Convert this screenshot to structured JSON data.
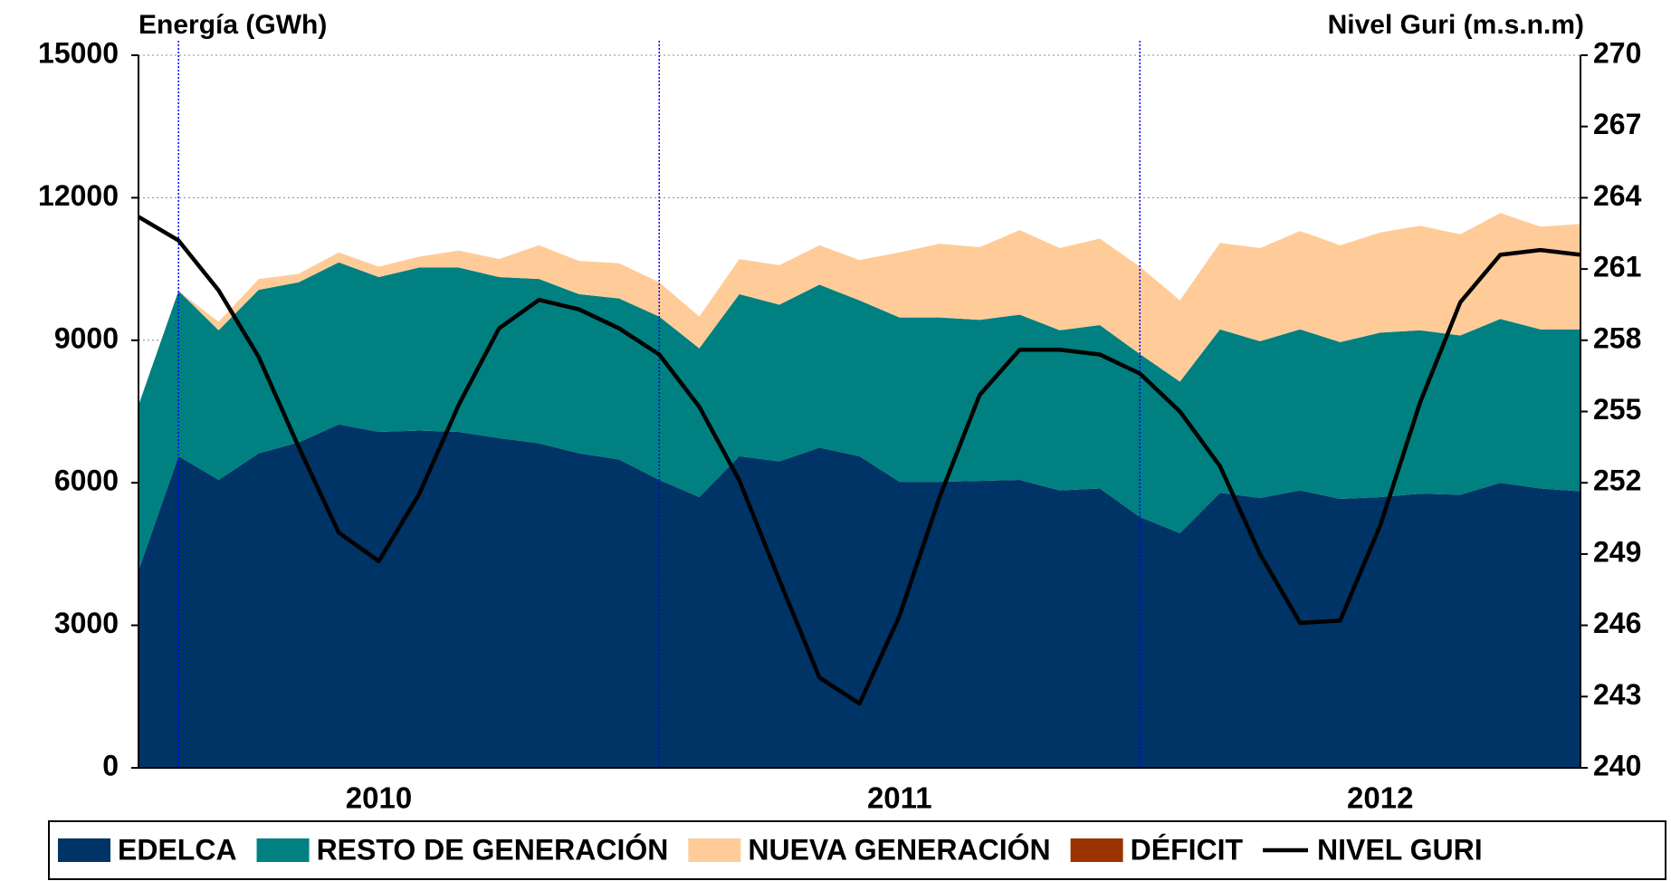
{
  "chart_data": {
    "type": "stacked_area_line",
    "y_title": "Energía (GWh)",
    "y2_title": "Nivel Guri (m.s.n.m)",
    "categories": [
      null,
      null,
      null,
      null,
      null,
      null,
      "2010",
      null,
      null,
      null,
      null,
      null,
      null,
      null,
      null,
      null,
      null,
      null,
      null,
      "2011",
      null,
      null,
      null,
      null,
      null,
      null,
      null,
      null,
      null,
      null,
      null,
      "2012",
      null,
      null,
      null,
      null,
      null
    ],
    "series": [
      {
        "name": "EDELCA",
        "color": "#003366",
        "values": [
          4150,
          6560,
          6060,
          6620,
          6850,
          7230,
          7070,
          7100,
          7070,
          6940,
          6830,
          6620,
          6490,
          6060,
          5700,
          6560,
          6450,
          6740,
          6560,
          6020,
          6020,
          6040,
          6060,
          5840,
          5880,
          5280,
          4940,
          5790,
          5680,
          5840,
          5660,
          5700,
          5770,
          5750,
          6000,
          5880,
          5820
        ]
      },
      {
        "name": "RESTO DE GENERACIÓN",
        "color": "#008080",
        "values": [
          3480,
          3480,
          3150,
          3440,
          3370,
          3410,
          3260,
          3430,
          3460,
          3390,
          3460,
          3350,
          3390,
          3440,
          3130,
          3410,
          3300,
          3430,
          3280,
          3460,
          3460,
          3390,
          3480,
          3370,
          3440,
          3430,
          3190,
          3440,
          3300,
          3390,
          3300,
          3460,
          3440,
          3350,
          3450,
          3350,
          3410
        ]
      },
      {
        "name": "NUEVA GENERACIÓN",
        "color": "#FFCC99",
        "values": [
          0,
          0,
          180,
          230,
          180,
          210,
          220,
          230,
          360,
          380,
          710,
          700,
          740,
          720,
          670,
          740,
          830,
          830,
          850,
          1370,
          1550,
          1530,
          1780,
          1730,
          1820,
          1840,
          1710,
          1820,
          1960,
          2070,
          2040,
          2110,
          2200,
          2130,
          2230,
          2160,
          2220
        ]
      },
      {
        "name": "DÉFICIT",
        "color": "#993300",
        "values": [
          0,
          0,
          0,
          0,
          0,
          0,
          0,
          0,
          0,
          0,
          0,
          0,
          0,
          0,
          0,
          0,
          0,
          0,
          0,
          0,
          0,
          0,
          0,
          0,
          0,
          0,
          0,
          0,
          0,
          0,
          0,
          0,
          0,
          0,
          0,
          0,
          0
        ]
      },
      {
        "name": "NIVEL GURI",
        "color": "#000000",
        "axis": "y2",
        "kind": "line",
        "values": [
          263.2,
          262.2,
          260.1,
          257.3,
          253.5,
          249.9,
          248.7,
          251.5,
          255.3,
          258.5,
          259.7,
          259.3,
          258.5,
          257.4,
          255.2,
          252.1,
          247.9,
          243.8,
          242.7,
          246.4,
          251.4,
          255.7,
          257.6,
          257.6,
          257.4,
          256.6,
          255.0,
          252.7,
          249.0,
          246.1,
          246.2,
          250.2,
          255.4,
          259.6,
          261.6,
          261.8,
          261.6
        ]
      }
    ],
    "ylim": [
      0,
      15000
    ],
    "yticks": [
      0,
      3000,
      6000,
      9000,
      12000,
      15000
    ],
    "y2lim": [
      240,
      270
    ],
    "y2ticks": [
      240,
      243,
      246,
      249,
      252,
      255,
      258,
      261,
      264,
      267,
      270
    ],
    "grid": true,
    "legend": "bottom"
  }
}
